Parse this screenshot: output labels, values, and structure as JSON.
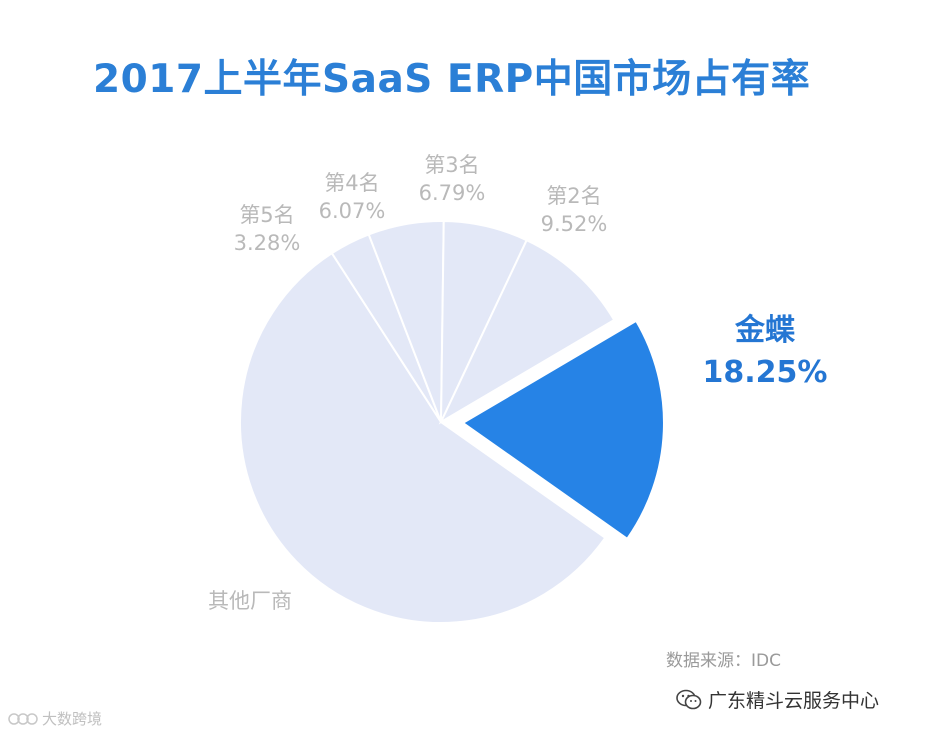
{
  "chart_data": {
    "type": "pie",
    "title": "2017上半年SaaS ERP中国市场占有率",
    "slices": [
      {
        "name": "金蝶",
        "value": 18.25,
        "label": "18.25%",
        "highlight": true,
        "color": "#2683e6"
      },
      {
        "name": "其他厂商",
        "value": 56.09,
        "label": "",
        "highlight": false,
        "color": "#e3e8f7"
      },
      {
        "name": "第5名",
        "value": 3.28,
        "label": "3.28%",
        "highlight": false,
        "color": "#e3e8f7"
      },
      {
        "name": "第4名",
        "value": 6.07,
        "label": "6.07%",
        "highlight": false,
        "color": "#e3e8f7"
      },
      {
        "name": "第3名",
        "value": 6.79,
        "label": "6.79%",
        "highlight": false,
        "color": "#e3e8f7"
      },
      {
        "name": "第2名",
        "value": 9.52,
        "label": "9.52%",
        "highlight": false,
        "color": "#e3e8f7"
      }
    ]
  },
  "source_text": "数据来源：IDC",
  "watermark_right": "广东精斗云服务中心",
  "watermark_left": "大数跨境"
}
